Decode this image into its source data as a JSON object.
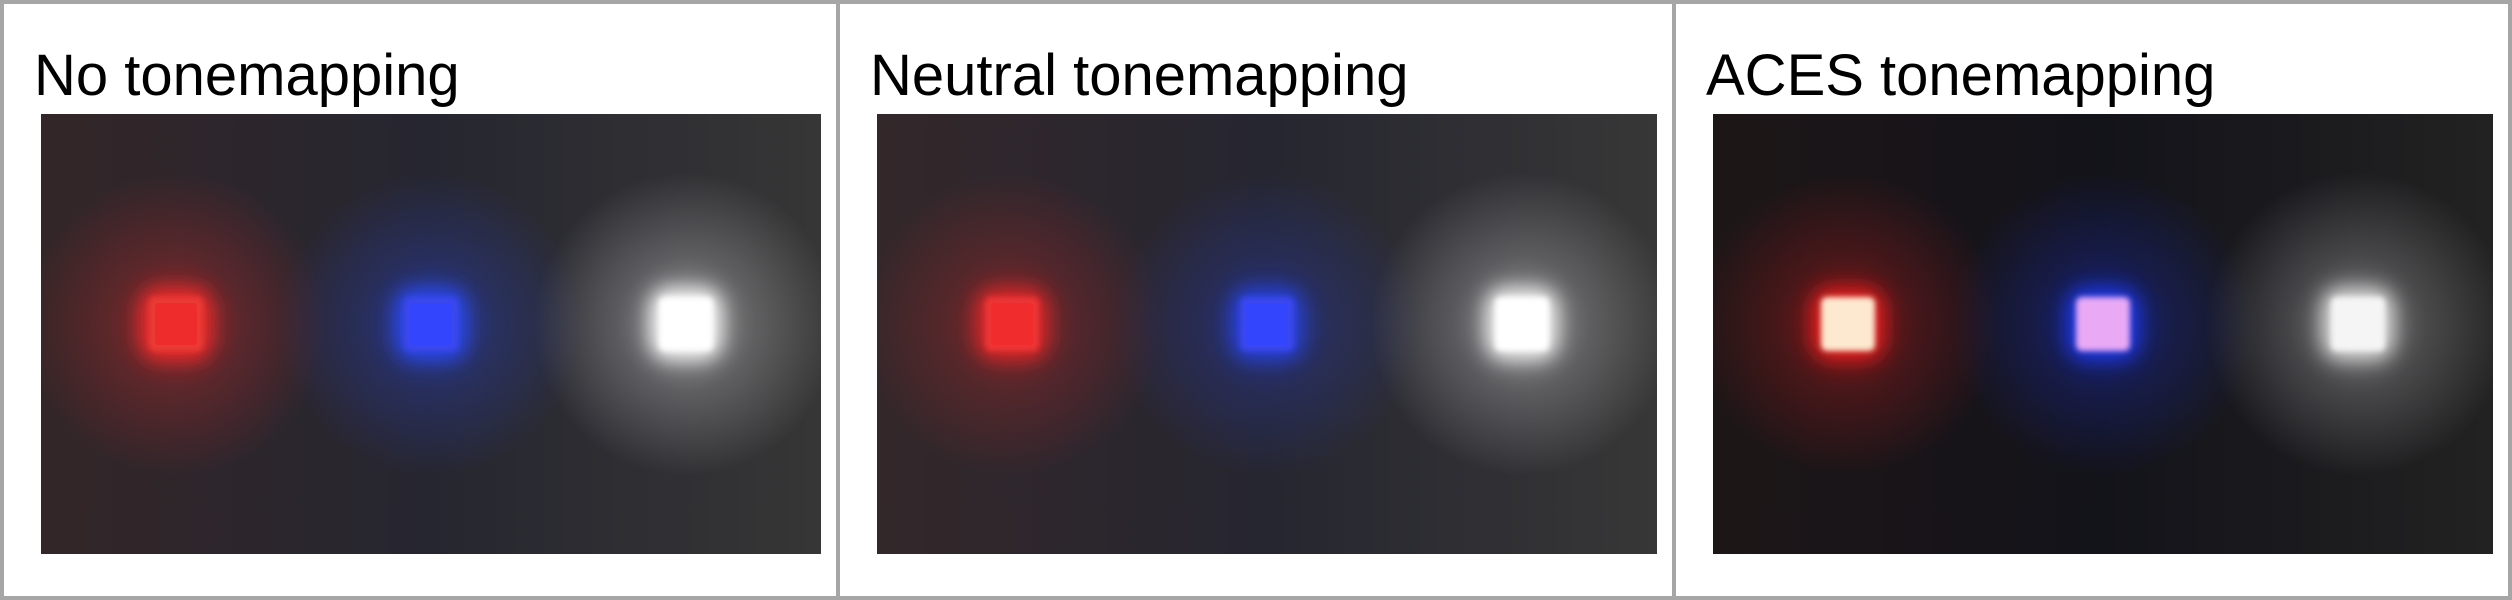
{
  "panels": [
    {
      "label": "No tonemapping",
      "background": {
        "left": "#332628",
        "mid": "#262630",
        "right": "#363636"
      },
      "lights": [
        {
          "name": "red-light",
          "glow": "#ff2a2a",
          "core": "#ea3a35",
          "center": "#f02b2b",
          "glow_strength": 0.95
        },
        {
          "name": "blue-light",
          "glow": "#2a4cff",
          "core": "#3a46ee",
          "center": "#3346ff",
          "glow_strength": 0.95
        },
        {
          "name": "white-light",
          "glow": "#ffffff",
          "core": "#ffffff",
          "center": "#ffffff",
          "glow_strength": 1.0
        }
      ]
    },
    {
      "label": "Neutral tonemapping",
      "background": {
        "left": "#33272a",
        "mid": "#262630",
        "right": "#373737"
      },
      "lights": [
        {
          "name": "red-light",
          "glow": "#ff2626",
          "core": "#ee3635",
          "center": "#f02b2b",
          "glow_strength": 0.8
        },
        {
          "name": "blue-light",
          "glow": "#2846ff",
          "core": "#3b46f0",
          "center": "#3346ff",
          "glow_strength": 0.8
        },
        {
          "name": "white-light",
          "glow": "#ffffff",
          "core": "#ffffff",
          "center": "#ffffff",
          "glow_strength": 0.95
        }
      ]
    },
    {
      "label": "ACES tonemapping",
      "background": {
        "left": "#1d1617",
        "mid": "#13131a",
        "right": "#222222"
      },
      "lights": [
        {
          "name": "red-light",
          "glow": "#ff1e1e",
          "core": "#fde9cf",
          "center": "#fde9cf",
          "glow_strength": 0.9
        },
        {
          "name": "blue-light",
          "glow": "#1f3aff",
          "core": "#e9a9f5",
          "center": "#e9a9f5",
          "glow_strength": 0.9
        },
        {
          "name": "white-light",
          "glow": "#f2f2f2",
          "core": "#f5f5f5",
          "center": "#f5f5f5",
          "glow_strength": 0.9
        }
      ]
    }
  ]
}
